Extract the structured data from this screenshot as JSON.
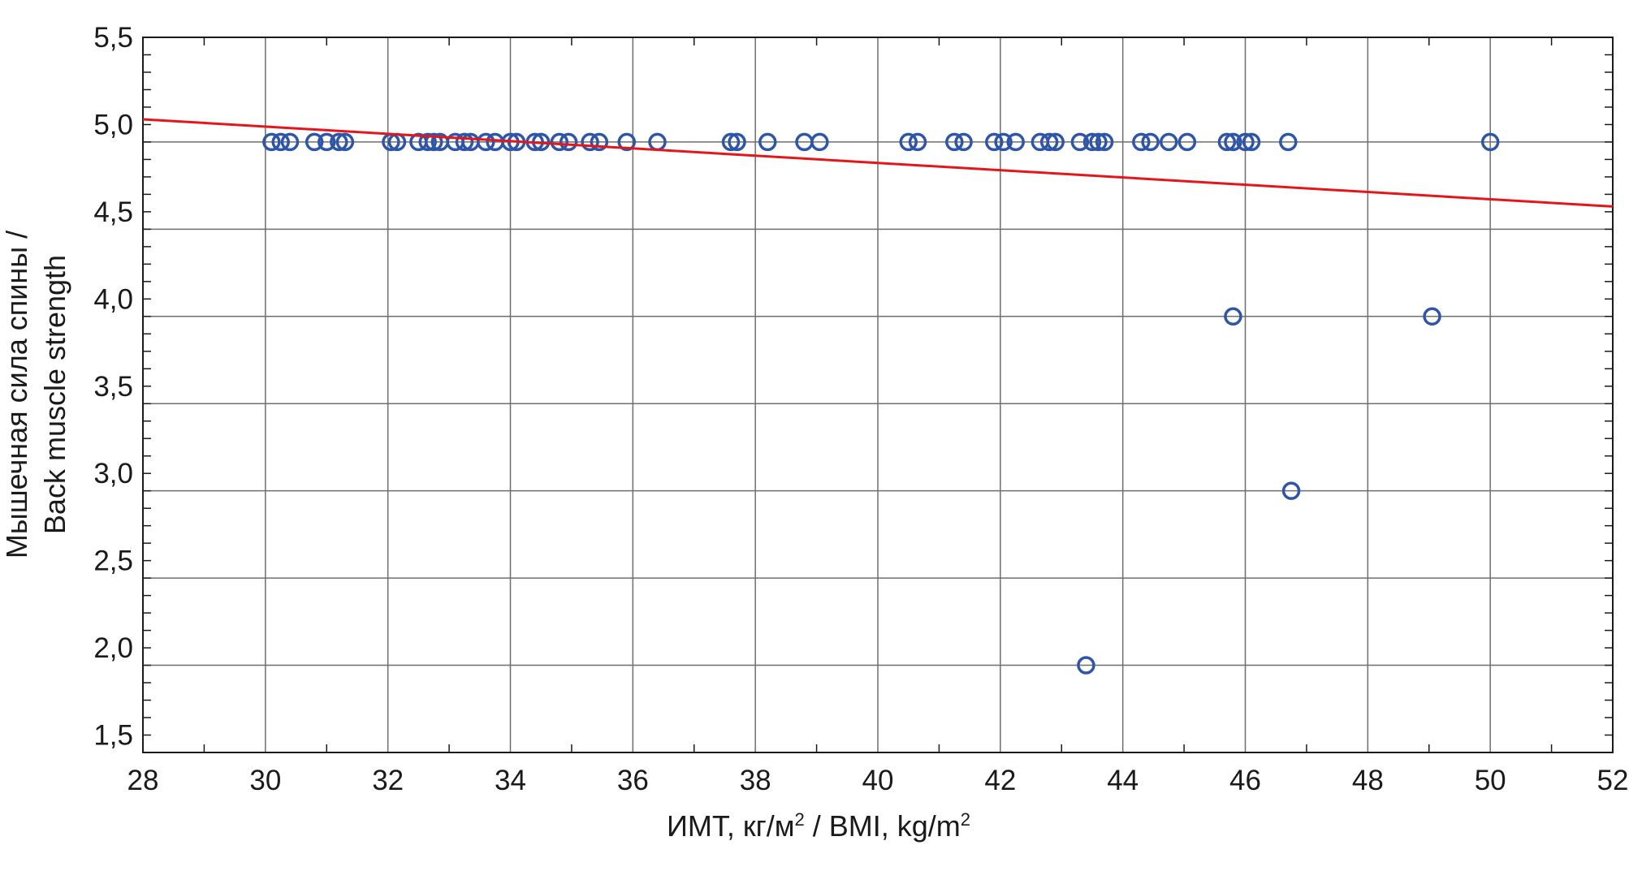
{
  "chart_data": {
    "type": "scatter",
    "xlabel": {
      "main": "ИМТ, кг/м",
      "sup1": "2",
      "mid": " / BMI, kg/m",
      "sup2": "2"
    },
    "ylabel": {
      "line1": "Мышечная сила спины /",
      "line2": "Back muscle strength"
    },
    "xlim": [
      28,
      52
    ],
    "ylim": [
      1.4,
      5.5
    ],
    "x_ticks": [
      "28",
      "30",
      "32",
      "34",
      "36",
      "38",
      "40",
      "42",
      "44",
      "46",
      "48",
      "50",
      "52"
    ],
    "y_ticks": [
      {
        "label": "1,5",
        "value": 1.5
      },
      {
        "label": "2,0",
        "value": 2.0
      },
      {
        "label": "2,5",
        "value": 2.5
      },
      {
        "label": "3,0",
        "value": 3.0
      },
      {
        "label": "3,5",
        "value": 3.5
      },
      {
        "label": "4,0",
        "value": 4.0
      },
      {
        "label": "4,5",
        "value": 4.5
      },
      {
        "label": "5,0",
        "value": 5.0
      },
      {
        "label": "5,5",
        "value": 5.5
      }
    ],
    "gridlines_y": [
      1.9,
      2.4,
      2.9,
      3.4,
      3.9,
      4.4,
      4.9
    ],
    "grid": true,
    "series": [
      {
        "color": "#2e55a7",
        "x": [
          30.1,
          30.25,
          30.4,
          30.8,
          31.0,
          31.2,
          31.3,
          32.05,
          32.15,
          32.5,
          32.65,
          32.75,
          32.85,
          33.1,
          33.25,
          33.35,
          33.6,
          33.75,
          34.0,
          34.1,
          34.4,
          34.5,
          34.8,
          34.95,
          35.3,
          35.45,
          35.9,
          36.4,
          37.6,
          37.7,
          38.2,
          38.8,
          39.05,
          40.5,
          40.65,
          41.25,
          41.4,
          41.9,
          42.05,
          42.25,
          42.65,
          42.8,
          42.9,
          43.3,
          43.5,
          43.6,
          43.7,
          44.3,
          44.45,
          44.75,
          45.05,
          45.7,
          45.8,
          46.0,
          46.1,
          46.7,
          50.0,
          45.8,
          49.05,
          46.75,
          43.4
        ],
        "y": [
          4.9,
          4.9,
          4.9,
          4.9,
          4.9,
          4.9,
          4.9,
          4.9,
          4.9,
          4.9,
          4.9,
          4.9,
          4.9,
          4.9,
          4.9,
          4.9,
          4.9,
          4.9,
          4.9,
          4.9,
          4.9,
          4.9,
          4.9,
          4.9,
          4.9,
          4.9,
          4.9,
          4.9,
          4.9,
          4.9,
          4.9,
          4.9,
          4.9,
          4.9,
          4.9,
          4.9,
          4.9,
          4.9,
          4.9,
          4.9,
          4.9,
          4.9,
          4.9,
          4.9,
          4.9,
          4.9,
          4.9,
          4.9,
          4.9,
          4.9,
          4.9,
          4.9,
          4.9,
          4.9,
          4.9,
          4.9,
          4.9,
          3.9,
          3.9,
          2.9,
          1.9
        ]
      }
    ],
    "trend_line": {
      "x": [
        28,
        52
      ],
      "y": [
        5.03,
        4.53
      ],
      "color": "#e4161b"
    }
  }
}
